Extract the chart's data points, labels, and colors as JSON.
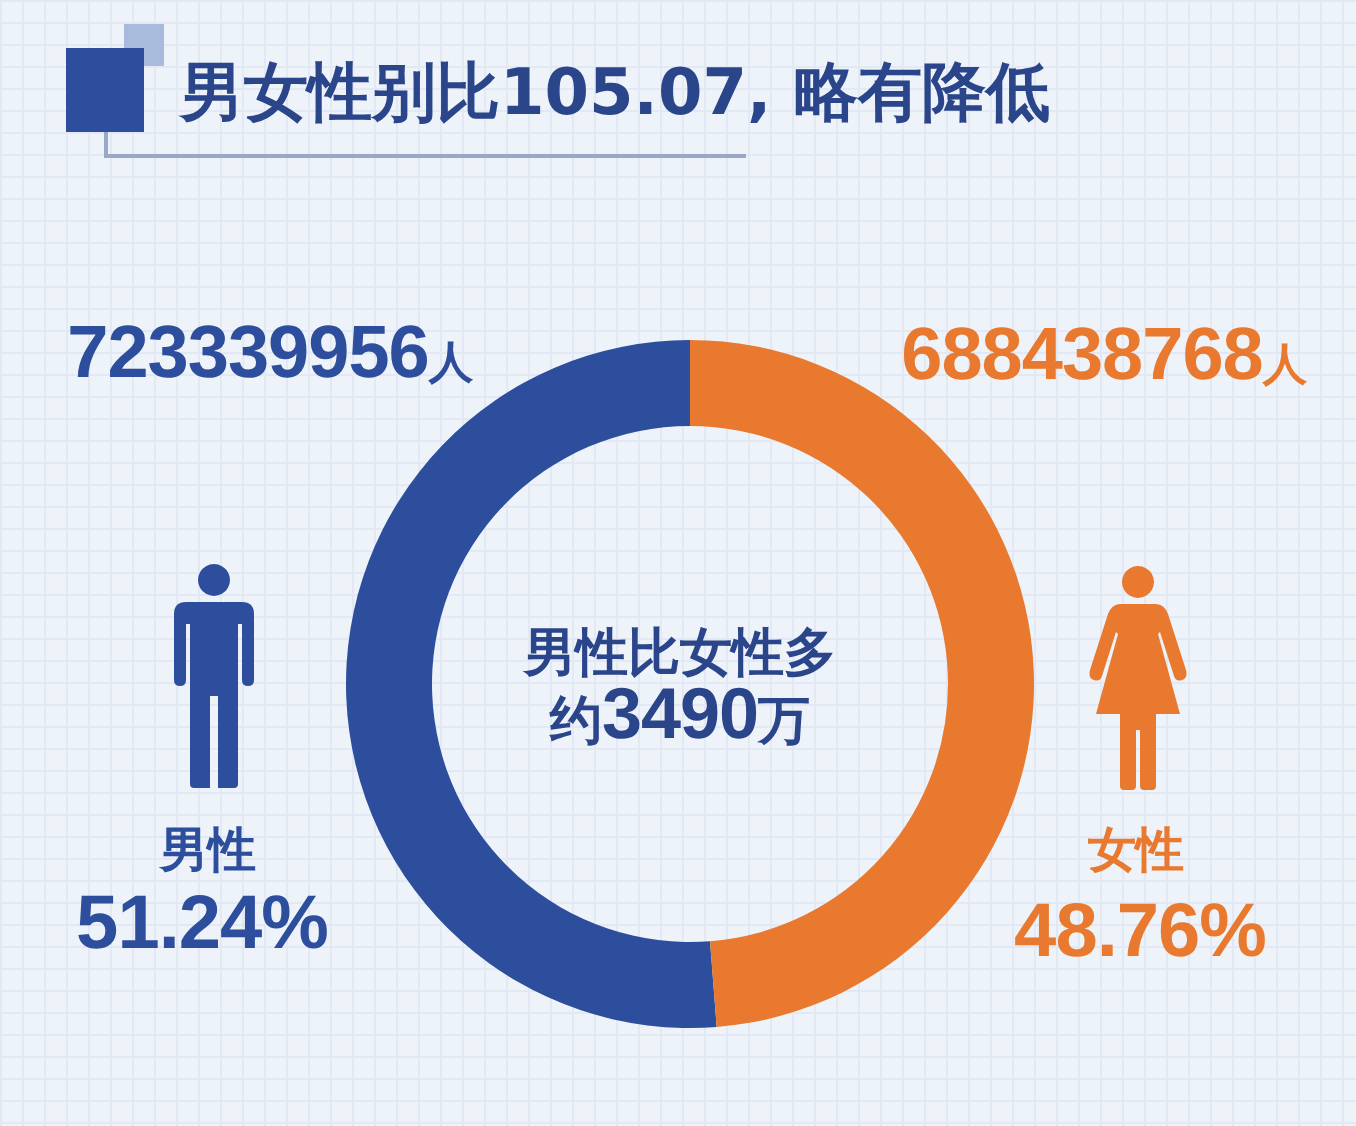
{
  "chart_data": {
    "type": "donut",
    "title": "男女性别比105.07, 略有降低",
    "categories": [
      "男性",
      "女性"
    ],
    "values": [
      723339956,
      688438768
    ],
    "colors": [
      "#2d4e9c",
      "#e8792e"
    ],
    "value_labels": [
      "723339956人",
      "688438768人"
    ],
    "annotations": [
      "男性比女性多",
      "约3490万",
      "51.24%",
      "48.76%"
    ]
  }
}
